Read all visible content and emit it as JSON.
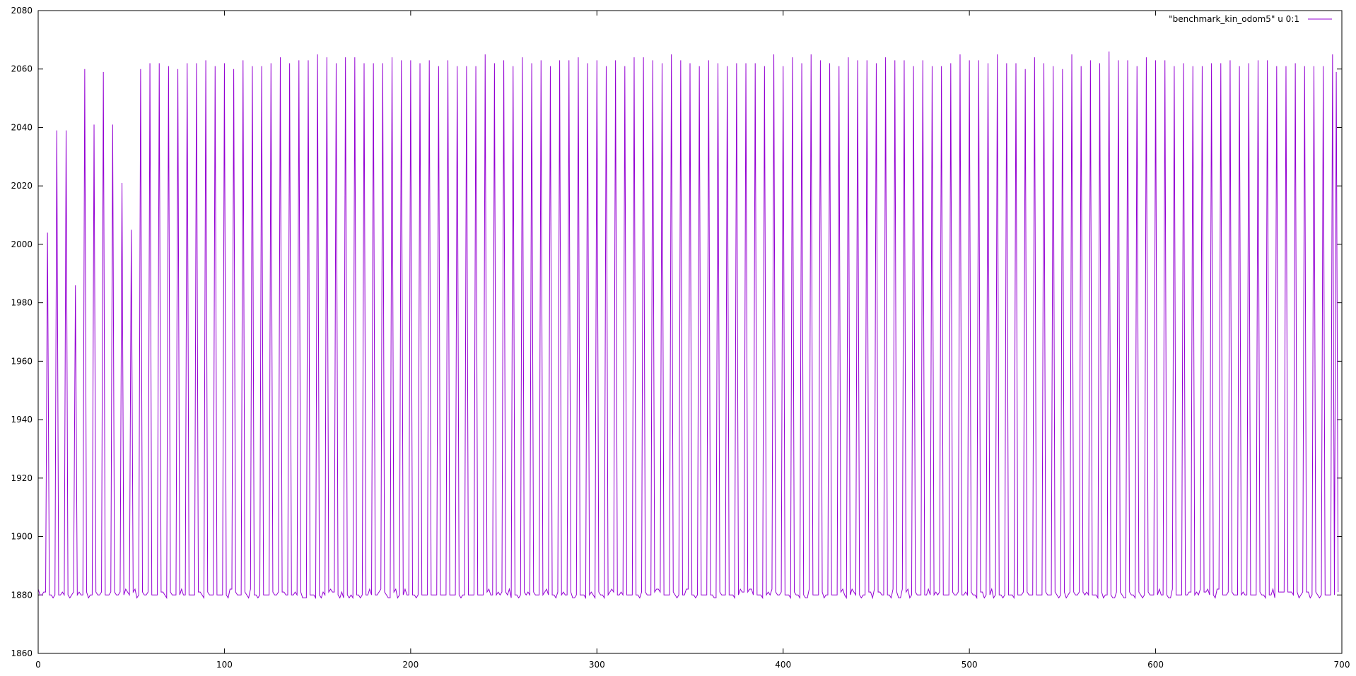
{
  "chart_data": {
    "type": "line",
    "title": "",
    "xlabel": "",
    "ylabel": "",
    "xlim": [
      0,
      700
    ],
    "ylim": [
      1860,
      2080
    ],
    "x_ticks": [
      0,
      100,
      200,
      300,
      400,
      500,
      600,
      700
    ],
    "y_ticks": [
      1860,
      1880,
      1900,
      1920,
      1940,
      1960,
      1980,
      2000,
      2020,
      2040,
      2060,
      2080
    ],
    "grid": false,
    "legend_position": "top-right",
    "series": [
      {
        "name": "\"benchmark_kin_odom5\" u 0:1",
        "color": "#9400d3",
        "description_of_pattern": "",
        "baseline": 1880,
        "period": 5,
        "n_points": 695,
        "peak_values": [
          2004,
          2039,
          2039,
          1986,
          2060,
          2041,
          2059,
          2041,
          2021,
          2005,
          2060,
          2062,
          2062,
          2061,
          2060,
          2062,
          2062,
          2063,
          2061,
          2062,
          2060,
          2063,
          2061,
          2061,
          2062,
          2064,
          2062,
          2063,
          2063,
          2065,
          2064,
          2062,
          2064,
          2064,
          2062,
          2062,
          2062,
          2064,
          2063,
          2063,
          2062,
          2063,
          2061,
          2063,
          2061,
          2061,
          2061,
          2065,
          2062,
          2063,
          2061,
          2064,
          2062,
          2063,
          2061,
          2063,
          2063,
          2064,
          2062,
          2063,
          2061,
          2063,
          2061,
          2064,
          2064,
          2063,
          2062,
          2065,
          2063,
          2062,
          2061,
          2063,
          2062,
          2061,
          2062,
          2062,
          2062,
          2061,
          2065,
          2061,
          2064,
          2062,
          2065,
          2063,
          2062,
          2061,
          2064,
          2063,
          2063,
          2062,
          2064,
          2063,
          2063,
          2061,
          2063,
          2061,
          2061,
          2062,
          2065,
          2063,
          2063,
          2062,
          2065,
          2062,
          2062,
          2060,
          2064,
          2062,
          2061,
          2060,
          2065,
          2061,
          2063,
          2062,
          2066,
          2063,
          2063,
          2061,
          2064,
          2063,
          2063,
          2061,
          2062,
          2061,
          2061,
          2062,
          2062,
          2063,
          2061,
          2062,
          2063,
          2063,
          2061,
          2061,
          2062,
          2061,
          2061,
          2061,
          2065
        ],
        "final_peak": 2059
      }
    ]
  }
}
